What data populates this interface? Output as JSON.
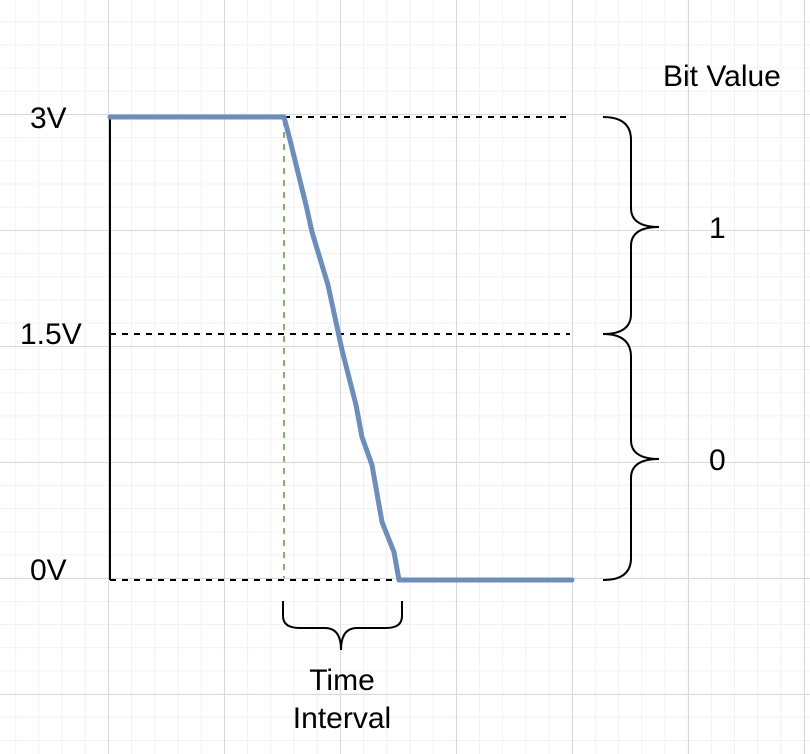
{
  "axis": {
    "voltage_labels": {
      "high": "3V",
      "mid": "1.5V",
      "low": "0V"
    }
  },
  "bit_value": {
    "title": "Bit Value",
    "upper": "1",
    "lower": "0"
  },
  "time_interval": {
    "line1": "Time",
    "line2": "Interval"
  },
  "colors": {
    "signal": "#6c8ebf",
    "transition_marker": "#82b366",
    "lines": "#000000"
  }
}
